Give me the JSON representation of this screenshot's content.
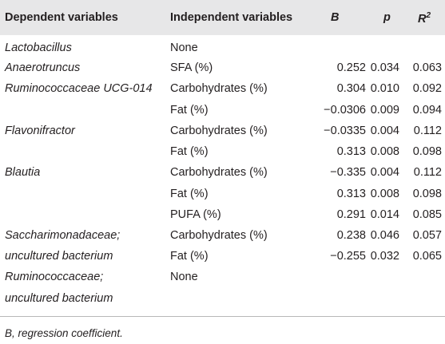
{
  "headers": {
    "dependent": "Dependent variables",
    "independent": "Independent variables",
    "b": "B",
    "p": "p",
    "r2_base": "R",
    "r2_sup": "2"
  },
  "rows": [
    {
      "dep": "Lactobacillus",
      "ind": "None",
      "b": "",
      "p": "",
      "r2": ""
    },
    {
      "dep": "Anaerotruncus",
      "ind": "SFA (%)",
      "b": "0.252",
      "p": "0.034",
      "r2": "0.063"
    },
    {
      "dep": "Ruminococcaceae UCG-014",
      "ind": "Carbohydrates (%)",
      "b": "0.304",
      "p": "0.010",
      "r2": "0.092"
    },
    {
      "dep": "",
      "ind": "Fat (%)",
      "b": "−0.0306",
      "p": "0.009",
      "r2": "0.094"
    },
    {
      "dep": "Flavonifractor",
      "ind": "Carbohydrates (%)",
      "b": "−0.0335",
      "p": "0.004",
      "r2": "0.112"
    },
    {
      "dep": "",
      "ind": "Fat (%)",
      "b": "0.313",
      "p": "0.008",
      "r2": "0.098"
    },
    {
      "dep": "Blautia",
      "ind": "Carbohydrates (%)",
      "b": "−0.335",
      "p": "0.004",
      "r2": "0.112"
    },
    {
      "dep": "",
      "ind": "Fat (%)",
      "b": "0.313",
      "p": "0.008",
      "r2": "0.098"
    },
    {
      "dep": "",
      "ind": "PUFA (%)",
      "b": "0.291",
      "p": "0.014",
      "r2": "0.085"
    },
    {
      "dep": "Saccharimonadaceae;",
      "ind": "Carbohydrates (%)",
      "b": "0.238",
      "p": "0.046",
      "r2": "0.057"
    },
    {
      "dep": "uncultured bacterium",
      "ind": "Fat (%)",
      "b": "−0.255",
      "p": "0.032",
      "r2": "0.065"
    },
    {
      "dep": "Ruminococcaceae;",
      "ind": "None",
      "b": "",
      "p": "",
      "r2": ""
    },
    {
      "dep": "uncultured bacterium",
      "ind": "",
      "b": "",
      "p": "",
      "r2": ""
    }
  ],
  "footnote": "B, regression coefficient."
}
